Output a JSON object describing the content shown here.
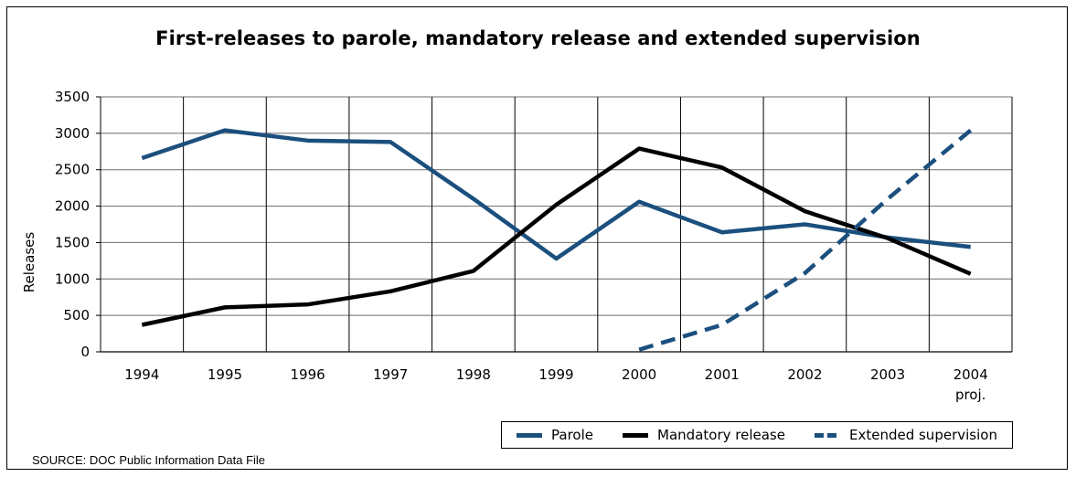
{
  "chart_data": {
    "type": "line",
    "title": "First-releases to parole, mandatory release and extended supervision",
    "ylabel": "Releases",
    "xlabel": "",
    "categories": [
      "1994",
      "1995",
      "1996",
      "1997",
      "1998",
      "1999",
      "2000",
      "2001",
      "2002",
      "2003",
      "2004"
    ],
    "x_sublabel": {
      "2004": "proj."
    },
    "ylim": [
      0,
      3500
    ],
    "yticks": [
      0,
      500,
      1000,
      1500,
      2000,
      2500,
      3000,
      3500
    ],
    "grid": true,
    "legend_position": "bottom-right",
    "series": [
      {
        "name": "Parole",
        "color": "#1b4f7e",
        "style": "solid",
        "values": [
          2660,
          3040,
          2900,
          2880,
          2100,
          1280,
          2060,
          1640,
          1750,
          1570,
          1440
        ]
      },
      {
        "name": "Mandatory release",
        "color": "#000000",
        "style": "solid",
        "values": [
          370,
          610,
          650,
          830,
          1110,
          2020,
          2790,
          2530,
          1930,
          1560,
          1070
        ]
      },
      {
        "name": "Extended supervision",
        "color": "#1b4f7e",
        "style": "dashed",
        "values": [
          null,
          null,
          null,
          null,
          null,
          null,
          30,
          370,
          1080,
          2100,
          3040
        ]
      }
    ]
  },
  "footer": {
    "source": "SOURCE: DOC Public Information Data File"
  }
}
